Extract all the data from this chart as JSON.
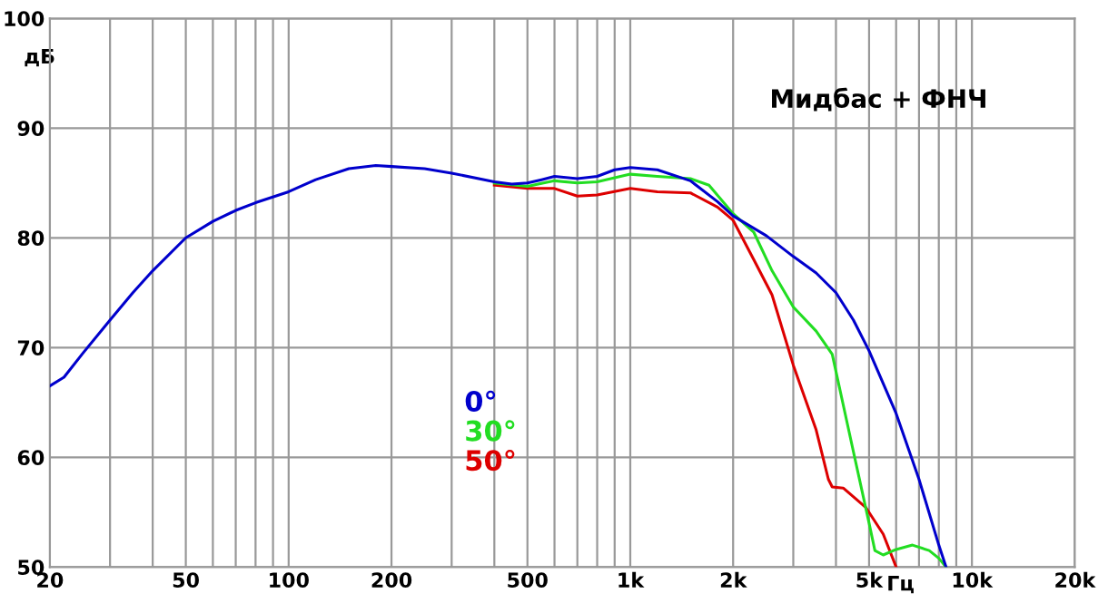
{
  "chart_data": {
    "type": "line",
    "xlabel": "Гц",
    "ylabel": "дБ",
    "annotations": [
      "Мидбас + ФНЧ"
    ],
    "log": "x",
    "xlim": [
      20,
      20000
    ],
    "ylim": [
      50,
      100
    ],
    "xticks": [
      {
        "value": 20,
        "label": "20"
      },
      {
        "value": 30,
        "label": null
      },
      {
        "value": 40,
        "label": null
      },
      {
        "value": 50,
        "label": "50"
      },
      {
        "value": 60,
        "label": null
      },
      {
        "value": 70,
        "label": null
      },
      {
        "value": 80,
        "label": null
      },
      {
        "value": 90,
        "label": null
      },
      {
        "value": 100,
        "label": "100"
      },
      {
        "value": 200,
        "label": "200"
      },
      {
        "value": 300,
        "label": null
      },
      {
        "value": 400,
        "label": null
      },
      {
        "value": 500,
        "label": "500"
      },
      {
        "value": 600,
        "label": null
      },
      {
        "value": 700,
        "label": null
      },
      {
        "value": 800,
        "label": null
      },
      {
        "value": 900,
        "label": null
      },
      {
        "value": 1000,
        "label": "1k"
      },
      {
        "value": 2000,
        "label": "2k"
      },
      {
        "value": 3000,
        "label": null
      },
      {
        "value": 4000,
        "label": null
      },
      {
        "value": 5000,
        "label": "5k"
      },
      {
        "value": 6000,
        "label": null
      },
      {
        "value": 7000,
        "label": null
      },
      {
        "value": 8000,
        "label": null
      },
      {
        "value": 9000,
        "label": null
      },
      {
        "value": 10000,
        "label": "10k"
      },
      {
        "value": 20000,
        "label": "20k"
      }
    ],
    "yticks": [
      50,
      60,
      70,
      80,
      90,
      100
    ],
    "grid": true,
    "legend": "bottom",
    "line_style": "solid",
    "marker": "none",
    "series": [
      {
        "name": "0°",
        "color": "#0000cc",
        "x": [
          20,
          22,
          25,
          30,
          35,
          40,
          50,
          60,
          70,
          80,
          100,
          120,
          150,
          180,
          200,
          250,
          300,
          400,
          450,
          500,
          550,
          600,
          700,
          800,
          900,
          1000,
          1200,
          1500,
          1800,
          2000,
          2500,
          3000,
          3500,
          4000,
          4500,
          5000,
          6000,
          7000,
          8000,
          8400
        ],
        "values": [
          66.5,
          67.3,
          69.5,
          72.5,
          75,
          77,
          80,
          81.5,
          82.5,
          83.2,
          84.2,
          85.3,
          86.3,
          86.6,
          86.5,
          86.3,
          85.9,
          85.1,
          84.9,
          85.0,
          85.3,
          85.6,
          85.4,
          85.6,
          86.2,
          86.4,
          86.2,
          85.2,
          83.3,
          82.0,
          80.2,
          78.3,
          76.8,
          75.0,
          72.5,
          69.7,
          64,
          58,
          52,
          50
        ]
      },
      {
        "name": "30°",
        "color": "#22dd22",
        "x": [
          400,
          500,
          600,
          700,
          800,
          1000,
          1200,
          1500,
          1700,
          2000,
          2300,
          2600,
          3000,
          3500,
          3900,
          4500,
          5000,
          5200,
          5500,
          6000,
          6700,
          7500,
          8000,
          8400
        ],
        "values": [
          85.0,
          84.7,
          85.2,
          85.0,
          85.1,
          85.8,
          85.6,
          85.4,
          84.8,
          82.2,
          80.5,
          77,
          73.7,
          71.5,
          69.4,
          60.5,
          54,
          51.5,
          51.1,
          51.6,
          52,
          51.5,
          50.8,
          50
        ]
      },
      {
        "name": "50°",
        "color": "#dd0000",
        "x": [
          400,
          500,
          600,
          700,
          800,
          1000,
          1200,
          1500,
          1800,
          2000,
          2300,
          2600,
          3000,
          3500,
          3800,
          3900,
          4200,
          4900,
          5500,
          6000
        ],
        "values": [
          84.8,
          84.5,
          84.5,
          83.8,
          83.9,
          84.5,
          84.2,
          84.1,
          82.8,
          81.6,
          78,
          74.8,
          68.4,
          62.5,
          58,
          57.3,
          57.2,
          55.4,
          53,
          50
        ]
      }
    ]
  }
}
